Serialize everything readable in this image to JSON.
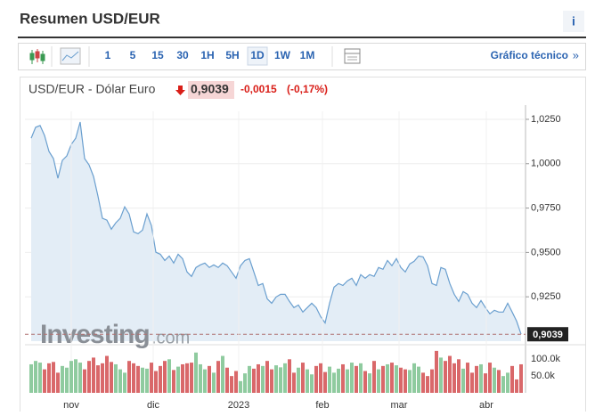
{
  "header": {
    "title": "Resumen USD/EUR",
    "info": "i"
  },
  "toolbar": {
    "intervals": [
      "1",
      "5",
      "15",
      "30",
      "1H",
      "5H",
      "1D",
      "1W",
      "1M"
    ],
    "active": 6,
    "link": "Gráfico técnico",
    "link_arrow": "»"
  },
  "quote": {
    "name": "USD/EUR - Dólar Euro",
    "price": "0,9039",
    "change": "-0,0015",
    "change_pct": "(-0,17%)"
  },
  "chart_data": [
    {
      "type": "line",
      "color": "#6a9fcf",
      "fill": "#e3edf6",
      "watermark": "Investing",
      "watermark_suffix": ".com",
      "x": [
        0,
        1,
        2,
        3,
        4,
        5,
        6,
        7,
        8,
        9,
        10,
        11,
        12,
        13,
        14,
        15,
        16,
        17,
        18,
        19,
        20,
        21,
        22,
        23,
        24,
        25,
        26,
        27,
        28,
        29,
        30,
        31,
        32,
        33,
        34,
        35,
        36,
        37,
        38,
        39,
        40,
        41,
        42,
        43,
        44,
        45,
        46,
        47,
        48,
        49,
        50,
        51,
        52,
        53,
        54,
        55,
        56,
        57,
        58,
        59,
        60,
        61,
        62,
        63,
        64,
        65,
        66,
        67,
        68,
        69,
        70,
        71,
        72,
        73,
        74,
        75,
        76,
        77,
        78,
        79,
        80,
        81,
        82,
        83,
        84,
        85,
        86,
        87,
        88,
        89,
        90,
        91,
        92,
        93,
        94,
        95,
        96,
        97,
        98,
        99,
        100,
        101,
        102,
        103,
        104,
        105,
        106,
        107,
        108,
        109,
        110
      ],
      "values": [
        1.0144,
        1.0205,
        1.0215,
        1.0159,
        1.0069,
        1.0029,
        0.9918,
        1.0019,
        1.0044,
        1.0109,
        1.0144,
        1.0235,
        1.0029,
        0.9993,
        0.9928,
        0.9817,
        0.9692,
        0.9682,
        0.9631,
        0.9667,
        0.9692,
        0.9757,
        0.9717,
        0.9616,
        0.9606,
        0.9626,
        0.9717,
        0.9651,
        0.9501,
        0.949,
        0.9455,
        0.948,
        0.944,
        0.949,
        0.9465,
        0.939,
        0.9365,
        0.9415,
        0.943,
        0.944,
        0.9415,
        0.943,
        0.9415,
        0.944,
        0.9425,
        0.939,
        0.9355,
        0.9425,
        0.9455,
        0.9465,
        0.939,
        0.9314,
        0.9325,
        0.9239,
        0.9214,
        0.9249,
        0.9264,
        0.9264,
        0.9224,
        0.9189,
        0.9204,
        0.9164,
        0.9189,
        0.9214,
        0.9189,
        0.9138,
        0.9103,
        0.9214,
        0.9304,
        0.9325,
        0.9314,
        0.934,
        0.9355,
        0.9314,
        0.9375,
        0.9355,
        0.9375,
        0.9365,
        0.9415,
        0.9405,
        0.9455,
        0.9425,
        0.9465,
        0.9415,
        0.939,
        0.9435,
        0.945,
        0.948,
        0.9475,
        0.9425,
        0.9325,
        0.9314,
        0.9415,
        0.9405,
        0.9325,
        0.9264,
        0.9224,
        0.9279,
        0.9264,
        0.9214,
        0.9189,
        0.9229,
        0.9189,
        0.9154,
        0.9174,
        0.9164,
        0.9164,
        0.9214,
        0.9164,
        0.9113,
        0.9039
      ],
      "xlim": [
        0,
        110
      ],
      "ylim": [
        0.9,
        1.0295
      ],
      "yticks": [
        {
          "value": 1.025,
          "label": "1,0250"
        },
        {
          "value": 1.0,
          "label": "1,0000"
        },
        {
          "value": 0.975,
          "label": "0,9750"
        },
        {
          "value": 0.95,
          "label": "0,9500"
        },
        {
          "value": 0.925,
          "label": "0,9250"
        }
      ],
      "last_value": 0.9039
    },
    {
      "type": "bar",
      "up_color": "#8fcb9f",
      "down_color": "#d9686a",
      "x": [
        0,
        1,
        2,
        3,
        4,
        5,
        6,
        7,
        8,
        9,
        10,
        11,
        12,
        13,
        14,
        15,
        16,
        17,
        18,
        19,
        20,
        21,
        22,
        23,
        24,
        25,
        26,
        27,
        28,
        29,
        30,
        31,
        32,
        33,
        34,
        35,
        36,
        37,
        38,
        39,
        40,
        41,
        42,
        43,
        44,
        45,
        46,
        47,
        48,
        49,
        50,
        51,
        52,
        53,
        54,
        55,
        56,
        57,
        58,
        59,
        60,
        61,
        62,
        63,
        64,
        65,
        66,
        67,
        68,
        69,
        70,
        71,
        72,
        73,
        74,
        75,
        76,
        77,
        78,
        79,
        80,
        81,
        82,
        83,
        84,
        85,
        86,
        87,
        88,
        89,
        90,
        91,
        92,
        93,
        94,
        95,
        96,
        97,
        98,
        99,
        100,
        101,
        102,
        103,
        104,
        105,
        106,
        107,
        108,
        109,
        110
      ],
      "values": [
        85000,
        95000,
        90000,
        70000,
        88000,
        92000,
        60000,
        80000,
        75000,
        95000,
        100000,
        90000,
        70000,
        95000,
        105000,
        82000,
        88000,
        110000,
        92000,
        85000,
        70000,
        60000,
        95000,
        88000,
        80000,
        75000,
        72000,
        90000,
        65000,
        80000,
        95000,
        100000,
        68000,
        78000,
        85000,
        88000,
        90000,
        120000,
        85000,
        70000,
        80000,
        60000,
        95000,
        110000,
        75000,
        50000,
        65000,
        35000,
        58000,
        80000,
        72000,
        85000,
        80000,
        95000,
        70000,
        82000,
        76000,
        88000,
        100000,
        60000,
        75000,
        90000,
        70000,
        55000,
        80000,
        88000,
        62000,
        78000,
        60000,
        72000,
        85000,
        70000,
        90000,
        80000,
        88000,
        65000,
        58000,
        95000,
        70000,
        80000,
        85000,
        90000,
        82000,
        75000,
        70000,
        68000,
        88000,
        78000,
        60000,
        50000,
        70000,
        125000,
        105000,
        95000,
        110000,
        88000,
        100000,
        72000,
        90000,
        60000,
        80000,
        85000,
        58000,
        90000,
        75000,
        68000,
        50000,
        60000,
        80000,
        40000,
        85000
      ],
      "xlim": [
        0,
        110
      ],
      "ylim": [
        0,
        130000
      ],
      "yticks": [
        {
          "value": 100000,
          "label": "100.0k"
        },
        {
          "value": 50000,
          "label": "50.0k"
        }
      ],
      "xticks": [
        {
          "value": 9,
          "label": "nov"
        },
        {
          "value": 27.4,
          "label": "dic"
        },
        {
          "value": 46.6,
          "label": "2023"
        },
        {
          "value": 65.4,
          "label": "feb"
        },
        {
          "value": 82.6,
          "label": "mar"
        },
        {
          "value": 102.2,
          "label": "abr"
        }
      ]
    }
  ]
}
